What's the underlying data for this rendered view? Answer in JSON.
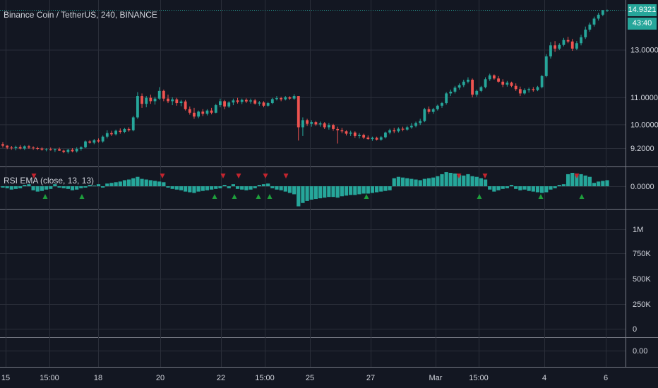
{
  "header": {
    "symbol_title": "Binance Coin / TetherUS, 240, BINANCE",
    "indicator_title": "RSI EMA (close, 13, 13)"
  },
  "price_tags": {
    "last_price": "14.9321",
    "countdown": "43:40"
  },
  "colors": {
    "background": "#131722",
    "grid": "#2a2e39",
    "up": "#26a69a",
    "down": "#ef5350",
    "signal_up": "#1e9e3c",
    "signal_down": "#c3242e",
    "separator": "#787b86"
  },
  "axes": {
    "price_ticks": [
      "14.9321",
      "13.0000",
      "11.0000",
      "10.0000",
      "9.2000"
    ],
    "indicator_ticks": [
      "0.0000"
    ],
    "volume_ticks": [
      "1M",
      "750K",
      "500K",
      "250K",
      "0"
    ],
    "extra_pane_ticks": [
      "0.00"
    ],
    "time_ticks": [
      "15",
      "15:00",
      "18",
      "20",
      "22",
      "15:00",
      "25",
      "27",
      "Mar",
      "15:00",
      "4",
      "6"
    ]
  },
  "chart_data": {
    "type": "candlestick",
    "title": "Binance Coin / TetherUS, 240, BINANCE",
    "price_scale": "log",
    "price_range": [
      8.8,
      15.1
    ],
    "bar_count": 140,
    "candles_ohlc": [
      [
        9.33,
        9.4,
        9.22,
        9.28
      ],
      [
        9.28,
        9.3,
        9.17,
        9.22
      ],
      [
        9.22,
        9.27,
        9.15,
        9.2
      ],
      [
        9.2,
        9.28,
        9.13,
        9.24
      ],
      [
        9.24,
        9.3,
        9.16,
        9.19
      ],
      [
        9.19,
        9.29,
        9.14,
        9.26
      ],
      [
        9.26,
        9.3,
        9.18,
        9.22
      ],
      [
        9.22,
        9.26,
        9.15,
        9.2
      ],
      [
        9.2,
        9.25,
        9.14,
        9.19
      ],
      [
        9.19,
        9.23,
        9.12,
        9.15
      ],
      [
        9.15,
        9.2,
        9.1,
        9.17
      ],
      [
        9.17,
        9.22,
        9.12,
        9.14
      ],
      [
        9.14,
        9.19,
        9.08,
        9.17
      ],
      [
        9.17,
        9.22,
        9.11,
        9.12
      ],
      [
        9.12,
        9.15,
        9.04,
        9.08
      ],
      [
        9.08,
        9.18,
        9.03,
        9.15
      ],
      [
        9.15,
        9.2,
        9.07,
        9.1
      ],
      [
        9.1,
        9.23,
        9.06,
        9.18
      ],
      [
        9.18,
        9.26,
        9.12,
        9.23
      ],
      [
        9.23,
        9.45,
        9.2,
        9.42
      ],
      [
        9.42,
        9.46,
        9.35,
        9.38
      ],
      [
        9.38,
        9.5,
        9.33,
        9.46
      ],
      [
        9.46,
        9.52,
        9.38,
        9.42
      ],
      [
        9.42,
        9.62,
        9.38,
        9.58
      ],
      [
        9.58,
        9.8,
        9.52,
        9.7
      ],
      [
        9.7,
        9.78,
        9.6,
        9.66
      ],
      [
        9.66,
        9.82,
        9.62,
        9.78
      ],
      [
        9.78,
        9.86,
        9.68,
        9.74
      ],
      [
        9.74,
        9.88,
        9.7,
        9.84
      ],
      [
        9.84,
        9.9,
        9.75,
        9.8
      ],
      [
        9.8,
        10.3,
        9.76,
        10.25
      ],
      [
        10.25,
        11.2,
        10.2,
        11.05
      ],
      [
        11.05,
        11.15,
        10.6,
        10.75
      ],
      [
        10.75,
        11.05,
        10.62,
        10.98
      ],
      [
        10.98,
        11.1,
        10.75,
        10.85
      ],
      [
        10.85,
        11.02,
        10.72,
        10.95
      ],
      [
        10.95,
        11.4,
        10.9,
        11.25
      ],
      [
        11.25,
        11.3,
        10.85,
        10.95
      ],
      [
        10.95,
        11.1,
        10.78,
        10.85
      ],
      [
        10.85,
        11.0,
        10.7,
        10.92
      ],
      [
        10.92,
        10.98,
        10.68,
        10.78
      ],
      [
        10.78,
        10.9,
        10.66,
        10.84
      ],
      [
        10.84,
        10.9,
        10.5,
        10.55
      ],
      [
        10.55,
        10.65,
        10.35,
        10.42
      ],
      [
        10.42,
        10.6,
        10.2,
        10.28
      ],
      [
        10.28,
        10.5,
        10.22,
        10.46
      ],
      [
        10.46,
        10.55,
        10.3,
        10.38
      ],
      [
        10.38,
        10.55,
        10.32,
        10.5
      ],
      [
        10.5,
        10.6,
        10.36,
        10.42
      ],
      [
        10.42,
        10.75,
        10.4,
        10.7
      ],
      [
        10.7,
        10.95,
        10.62,
        10.85
      ],
      [
        10.85,
        10.9,
        10.55,
        10.65
      ],
      [
        10.65,
        10.85,
        10.6,
        10.8
      ],
      [
        10.8,
        10.95,
        10.7,
        10.88
      ],
      [
        10.88,
        10.98,
        10.76,
        10.82
      ],
      [
        10.82,
        10.95,
        10.74,
        10.9
      ],
      [
        10.9,
        10.96,
        10.78,
        10.84
      ],
      [
        10.84,
        10.95,
        10.76,
        10.88
      ],
      [
        10.88,
        10.94,
        10.72,
        10.76
      ],
      [
        10.76,
        10.86,
        10.68,
        10.8
      ],
      [
        10.8,
        10.85,
        10.62,
        10.68
      ],
      [
        10.68,
        10.82,
        10.64,
        10.78
      ],
      [
        10.78,
        10.98,
        10.74,
        10.93
      ],
      [
        10.93,
        11.05,
        10.88,
        10.97
      ],
      [
        10.97,
        11.02,
        10.85,
        10.92
      ],
      [
        10.92,
        11.05,
        10.88,
        11.0
      ],
      [
        11.0,
        11.04,
        10.9,
        10.95
      ],
      [
        10.95,
        11.12,
        10.9,
        11.05
      ],
      [
        11.05,
        10.9,
        9.45,
        9.9
      ],
      [
        9.9,
        10.25,
        9.6,
        10.15
      ],
      [
        10.15,
        10.2,
        9.95,
        10.02
      ],
      [
        10.02,
        10.15,
        9.92,
        10.08
      ],
      [
        10.08,
        10.12,
        9.95,
        10.0
      ],
      [
        10.0,
        10.1,
        9.92,
        10.04
      ],
      [
        10.04,
        10.08,
        9.84,
        9.9
      ],
      [
        9.9,
        10.05,
        9.82,
        9.98
      ],
      [
        9.98,
        10.02,
        9.78,
        9.84
      ],
      [
        9.84,
        9.92,
        9.35,
        9.8
      ],
      [
        9.8,
        9.88,
        9.7,
        9.76
      ],
      [
        9.76,
        9.8,
        9.62,
        9.68
      ],
      [
        9.68,
        9.78,
        9.6,
        9.72
      ],
      [
        9.72,
        9.76,
        9.54,
        9.6
      ],
      [
        9.6,
        9.7,
        9.52,
        9.64
      ],
      [
        9.64,
        9.68,
        9.5,
        9.55
      ],
      [
        9.55,
        9.62,
        9.48,
        9.5
      ],
      [
        9.5,
        9.58,
        9.44,
        9.54
      ],
      [
        9.54,
        9.58,
        9.45,
        9.48
      ],
      [
        9.48,
        9.6,
        9.44,
        9.56
      ],
      [
        9.56,
        9.75,
        9.52,
        9.72
      ],
      [
        9.72,
        9.85,
        9.66,
        9.8
      ],
      [
        9.8,
        9.88,
        9.7,
        9.76
      ],
      [
        9.76,
        9.9,
        9.72,
        9.85
      ],
      [
        9.85,
        9.92,
        9.76,
        9.82
      ],
      [
        9.82,
        9.95,
        9.78,
        9.9
      ],
      [
        9.9,
        10.05,
        9.85,
        9.95
      ],
      [
        9.95,
        10.1,
        9.9,
        10.05
      ],
      [
        10.05,
        10.2,
        9.98,
        10.12
      ],
      [
        10.12,
        10.6,
        10.08,
        10.55
      ],
      [
        10.55,
        10.65,
        10.38,
        10.45
      ],
      [
        10.45,
        10.6,
        10.38,
        10.55
      ],
      [
        10.55,
        10.72,
        10.5,
        10.68
      ],
      [
        10.68,
        10.82,
        10.6,
        10.78
      ],
      [
        10.78,
        11.2,
        10.72,
        11.15
      ],
      [
        11.15,
        11.3,
        11.05,
        11.22
      ],
      [
        11.22,
        11.45,
        11.15,
        11.38
      ],
      [
        11.38,
        11.55,
        11.3,
        11.48
      ],
      [
        11.48,
        11.7,
        11.4,
        11.62
      ],
      [
        11.62,
        11.8,
        11.55,
        11.7
      ],
      [
        11.7,
        11.75,
        11.0,
        11.1
      ],
      [
        11.1,
        11.3,
        11.02,
        11.25
      ],
      [
        11.25,
        11.45,
        11.2,
        11.4
      ],
      [
        11.4,
        11.8,
        11.35,
        11.72
      ],
      [
        11.72,
        11.95,
        11.65,
        11.88
      ],
      [
        11.88,
        11.92,
        11.7,
        11.75
      ],
      [
        11.75,
        11.85,
        11.58,
        11.62
      ],
      [
        11.62,
        11.72,
        11.4,
        11.5
      ],
      [
        11.5,
        11.65,
        11.42,
        11.58
      ],
      [
        11.58,
        11.62,
        11.4,
        11.45
      ],
      [
        11.45,
        11.55,
        11.25,
        11.32
      ],
      [
        11.32,
        11.42,
        11.05,
        11.15
      ],
      [
        11.15,
        11.35,
        11.1,
        11.28
      ],
      [
        11.28,
        11.38,
        11.18,
        11.32
      ],
      [
        11.32,
        11.4,
        11.22,
        11.28
      ],
      [
        11.28,
        11.45,
        11.24,
        11.4
      ],
      [
        11.4,
        11.9,
        11.35,
        11.85
      ],
      [
        11.85,
        12.8,
        11.8,
        12.7
      ],
      [
        12.7,
        13.35,
        12.6,
        13.2
      ],
      [
        13.2,
        13.4,
        12.9,
        13.05
      ],
      [
        13.05,
        13.3,
        12.98,
        13.22
      ],
      [
        13.22,
        13.55,
        13.15,
        13.45
      ],
      [
        13.45,
        13.6,
        13.3,
        13.38
      ],
      [
        13.38,
        13.5,
        12.95,
        13.05
      ],
      [
        13.05,
        13.4,
        12.98,
        13.3
      ],
      [
        13.3,
        13.7,
        13.2,
        13.58
      ],
      [
        13.58,
        14.1,
        13.5,
        13.95
      ],
      [
        13.95,
        14.3,
        13.85,
        14.2
      ],
      [
        14.2,
        14.6,
        14.1,
        14.5
      ],
      [
        14.5,
        14.8,
        14.4,
        14.7
      ],
      [
        14.7,
        14.95,
        14.62,
        14.93
      ],
      [
        14.93,
        14.97,
        14.85,
        14.93
      ]
    ],
    "indicator": {
      "name": "RSI EMA (close, 13, 13)",
      "range": [
        -0.5,
        0.5
      ],
      "values": [
        -0.02,
        -0.03,
        -0.05,
        -0.04,
        -0.03,
        0.02,
        0.03,
        -0.06,
        -0.08,
        -0.07,
        -0.05,
        -0.04,
        0.03,
        -0.02,
        -0.03,
        -0.04,
        -0.06,
        -0.05,
        -0.03,
        -0.02,
        0.02,
        0.01,
        0.03,
        -0.02,
        0.04,
        0.05,
        0.06,
        0.07,
        0.09,
        0.1,
        0.12,
        0.14,
        0.11,
        0.1,
        0.09,
        0.08,
        0.07,
        0.06,
        -0.02,
        -0.04,
        -0.05,
        -0.06,
        -0.08,
        -0.09,
        -0.1,
        -0.08,
        -0.07,
        -0.06,
        -0.05,
        -0.04,
        -0.03,
        0.02,
        -0.03,
        0.03,
        -0.04,
        -0.05,
        -0.06,
        -0.05,
        -0.03,
        0.02,
        0.03,
        0.04,
        -0.03,
        -0.05,
        -0.06,
        -0.08,
        -0.1,
        -0.12,
        -0.3,
        -0.25,
        -0.22,
        -0.2,
        -0.19,
        -0.18,
        -0.17,
        -0.16,
        -0.16,
        -0.17,
        -0.15,
        -0.14,
        -0.13,
        -0.13,
        -0.12,
        -0.11,
        -0.11,
        -0.1,
        -0.09,
        -0.08,
        -0.07,
        -0.06,
        0.12,
        0.14,
        0.13,
        0.12,
        0.11,
        0.1,
        0.09,
        0.11,
        0.12,
        0.13,
        0.15,
        0.18,
        0.21,
        0.2,
        0.19,
        0.17,
        0.16,
        0.18,
        0.15,
        0.14,
        0.12,
        0.1,
        -0.05,
        -0.08,
        -0.06,
        -0.04,
        -0.03,
        0.02,
        -0.04,
        -0.06,
        -0.05,
        -0.07,
        -0.08,
        -0.09,
        -0.1,
        -0.09,
        -0.05,
        -0.03,
        0.02,
        0.03,
        0.18,
        0.2,
        0.19,
        0.18,
        0.16,
        0.14,
        0.05,
        0.07,
        0.08,
        0.09
      ],
      "sell_signal_bars": [
        11,
        48,
        65,
        69,
        78,
        85,
        90,
        124,
        130,
        156
      ],
      "buy_signal_bars": [
        12,
        22,
        64,
        72,
        78,
        82,
        85,
        112,
        139,
        162,
        182
      ],
      "zero_line": 0.0
    }
  }
}
